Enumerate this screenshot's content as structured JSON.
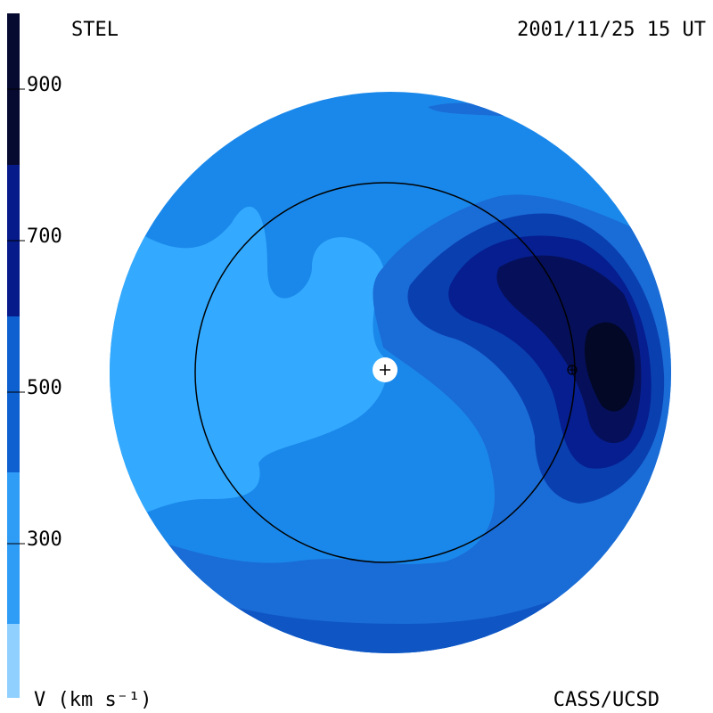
{
  "header": {
    "left": "STEL",
    "right": "2001/11/25 15 UT"
  },
  "colorbar": {
    "ticks": [
      "900",
      "700",
      "500",
      "300"
    ],
    "label": "V (km s⁻¹)"
  },
  "footer": {
    "right": "CASS/UCSD"
  }
}
